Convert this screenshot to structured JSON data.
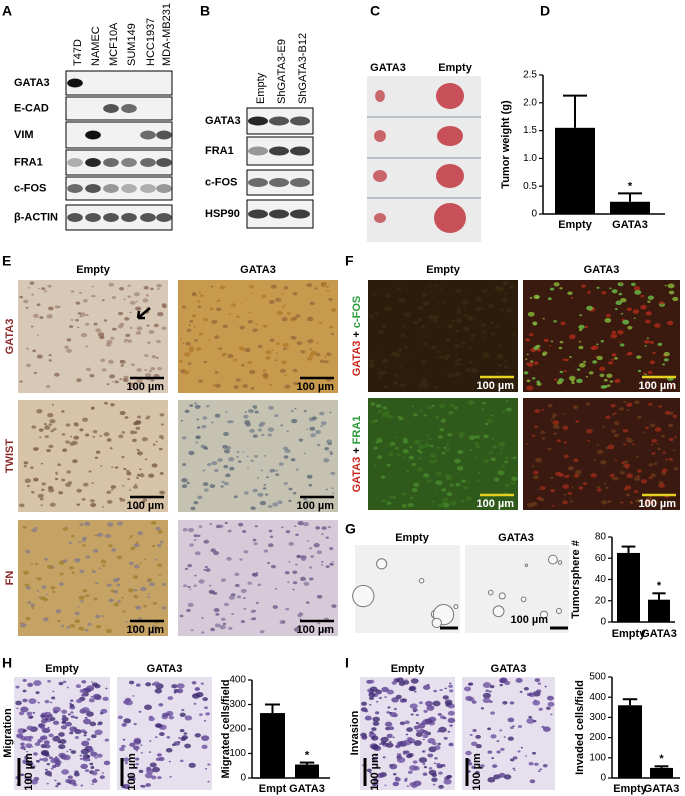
{
  "panel_letters": [
    "A",
    "B",
    "C",
    "D",
    "E",
    "F",
    "G",
    "H",
    "I"
  ],
  "panel_a": {
    "columns": [
      "T47D",
      "NAMEC",
      "MCF10A",
      "SUM149",
      "HCC1937",
      "MDA-MB231"
    ],
    "rows": [
      "GATA3",
      "E-CAD",
      "VIM",
      "FRA1",
      "c-FOS",
      "β-ACTIN"
    ]
  },
  "panel_b": {
    "columns": [
      "Empty",
      "ShGATA3-E9",
      "ShGATA3-B12"
    ],
    "rows": [
      "GATA3",
      "FRA1",
      "c-FOS",
      "HSP90"
    ]
  },
  "panel_c": {
    "labels": [
      "GATA3",
      "Empty"
    ]
  },
  "panel_e": {
    "columns": [
      "Empty",
      "GATA3"
    ],
    "rows": [
      "GATA3",
      "TWIST",
      "FN"
    ],
    "scale_labels": [
      "100 µm",
      "100 µm",
      "100 µm",
      "100 µm",
      "100 µm",
      "100 µm"
    ]
  },
  "panel_f": {
    "columns": [
      "Empty",
      "GATA3"
    ],
    "rows": [
      {
        "red": "GATA3",
        "join": "+",
        "green": "c-FOS"
      },
      {
        "red": "GATA3",
        "join": "+",
        "green": "FRA1"
      }
    ],
    "scale_labels": [
      "100 µm",
      "100 µm",
      "100 µm",
      "100 µm"
    ]
  },
  "panel_g": {
    "columns": [
      "Empty",
      "GATA3"
    ],
    "scale_label": "100 µm"
  },
  "panel_h": {
    "columns": [
      "Empty",
      "GATA3"
    ],
    "row_label": "Migration",
    "scale_labels": [
      "100 µm",
      "100 µm"
    ]
  },
  "panel_i": {
    "columns": [
      "Empty",
      "GATA3"
    ],
    "row_label": "Invasion",
    "scale_labels": [
      "100 µm",
      "100 µm"
    ]
  },
  "chart_data": [
    {
      "type": "bar",
      "y_label": "Tumor weight (g)",
      "categories": [
        "Empty",
        "GATA3"
      ],
      "values": [
        1.55,
        0.22
      ],
      "errors": [
        0.58,
        0.15
      ],
      "color": "#000000",
      "ylim": [
        0,
        2.5
      ],
      "yticks": [
        0,
        0.5,
        {
          "value": 1,
          "label": "1.0"
        },
        1.5,
        {
          "value": 2,
          "label": "2.0"
        },
        2.5
      ],
      "annotation": "*"
    },
    {
      "type": "bar",
      "y_label": "Tumorsphere #",
      "categories": [
        "Empty",
        "GATA3"
      ],
      "values": [
        65,
        21
      ],
      "errors": [
        6,
        6
      ],
      "color": "#000000",
      "ylim": [
        0,
        80
      ],
      "yticks": [
        0,
        20,
        40,
        60,
        80
      ],
      "annotation": "*"
    },
    {
      "type": "bar",
      "y_label": "Migrated cells/field",
      "categories": [
        "Empt",
        "GATA3"
      ],
      "values": [
        265,
        55
      ],
      "errors": [
        35,
        8
      ],
      "color": "#000000",
      "ylim": [
        0,
        400
      ],
      "yticks": [
        0,
        100,
        200,
        300,
        400
      ],
      "annotation": "*"
    },
    {
      "type": "bar",
      "y_label": "Invaded cells/field",
      "categories": [
        "Empty",
        "GATA3"
      ],
      "values": [
        360,
        50
      ],
      "errors": [
        30,
        8
      ],
      "color": "#000000",
      "ylim": [
        0,
        500
      ],
      "yticks": [
        0,
        100,
        200,
        300,
        400,
        500
      ],
      "annotation": "*"
    }
  ]
}
